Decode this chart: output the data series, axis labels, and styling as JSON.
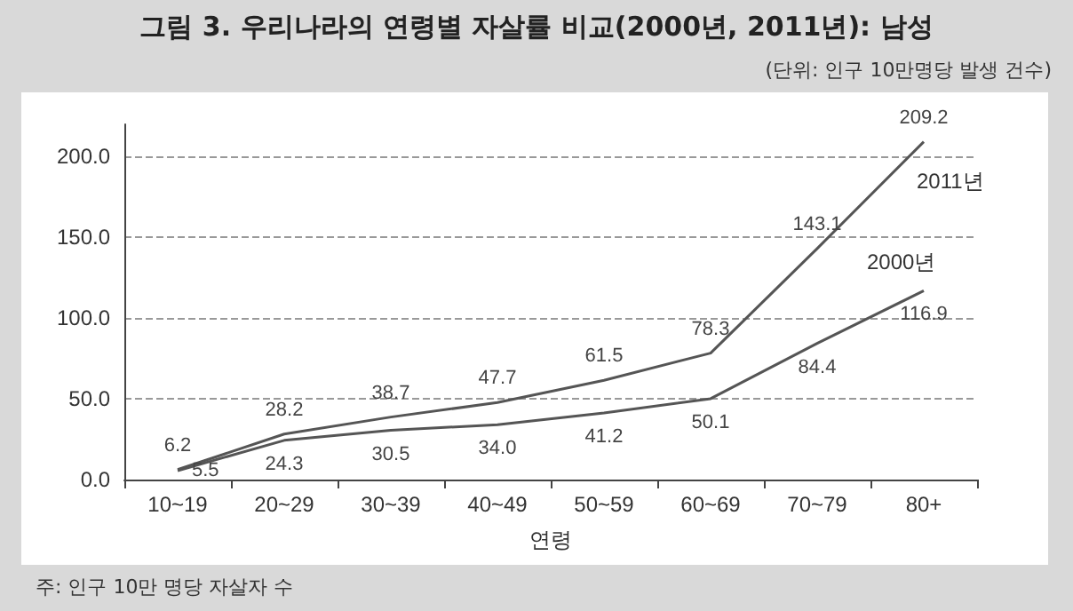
{
  "chart_data": {
    "type": "line",
    "title": "그림 3. 우리나라의 연령별 자살률 비교(2000년, 2011년): 남성",
    "subtitle": "(단위: 인구 10만명당 발생 건수)",
    "xlabel": "연령",
    "categories": [
      "10~19",
      "20~29",
      "30~39",
      "40~49",
      "50~59",
      "60~69",
      "70~79",
      "80+"
    ],
    "series": [
      {
        "name": "2011년",
        "color": "#555555",
        "values": [
          6.2,
          28.2,
          38.7,
          47.7,
          61.5,
          78.3,
          143.1,
          209.2
        ],
        "value_labels": [
          "6.2",
          "28.2",
          "38.7",
          "47.7",
          "61.5",
          "78.3",
          "143.1",
          "209.2"
        ]
      },
      {
        "name": "2000년",
        "color": "#555555",
        "values": [
          5.5,
          24.3,
          30.5,
          34.0,
          41.2,
          50.1,
          84.4,
          116.9
        ],
        "value_labels": [
          "5.5",
          "24.3",
          "30.5",
          "34.0",
          "41.2",
          "50.1",
          "84.4",
          "116.9"
        ]
      }
    ],
    "ylim": [
      0,
      220
    ],
    "yticks": [
      {
        "value": 0,
        "label": "0.0"
      },
      {
        "value": 50,
        "label": "50.0"
      },
      {
        "value": 100,
        "label": "100.0"
      },
      {
        "value": 150,
        "label": "150.0"
      },
      {
        "value": 200,
        "label": "200.0"
      }
    ],
    "grid": "y",
    "legend": false,
    "marker": "none",
    "line_style": "solid",
    "annotations": [
      "주: 인구 10만 명당 자살자 수"
    ]
  }
}
